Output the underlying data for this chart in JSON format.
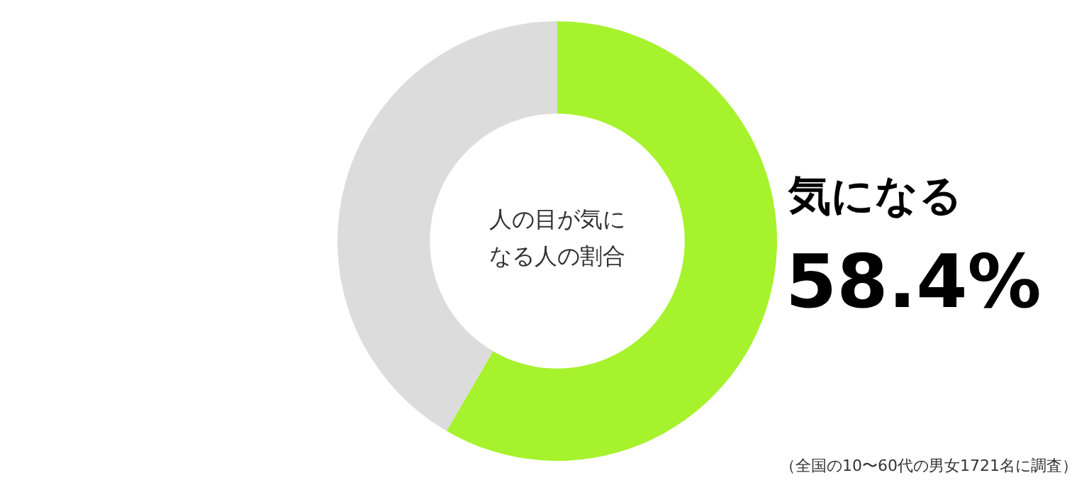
{
  "chart_data": {
    "type": "donut",
    "title": "人の目が気になる人の割合",
    "categories": [
      "気になる",
      null
    ],
    "values": [
      58.4,
      41.6
    ],
    "colors": [
      "#a6f22c",
      "#dcdcdc"
    ],
    "value_labels": [
      "58.4%",
      null
    ],
    "legend": false,
    "annotations": [
      "（全国の10〜60代の男女1721名に調査）"
    ]
  }
}
